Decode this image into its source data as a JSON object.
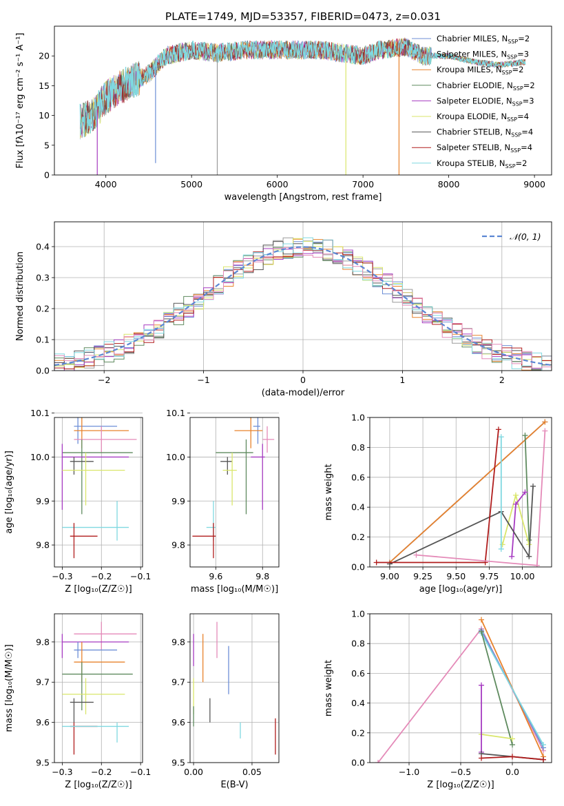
{
  "figure": {
    "title": "PLATE=1749, MJD=53357, FIBERID=0473, z=0.031"
  },
  "colors": [
    "#6c8ed6",
    "#9a9a9a",
    "#e8822b",
    "#5e8a5e",
    "#a63ac1",
    "#d9e66a",
    "#555555",
    "#b01c1c",
    "#7fd8e0",
    "#e48ab8"
  ],
  "chart_data": [
    {
      "id": "spectrum",
      "type": "line",
      "title": "PLATE=1749, MJD=53357, FIBERID=0473, z=0.031",
      "xlabel": "wavelength [Angstrom, rest frame]",
      "ylabel": "Flux [fλ10⁻¹⁷ erg cm⁻² s⁻¹ A⁻¹]",
      "xlim": [
        3400,
        9200
      ],
      "ylim": [
        0,
        25
      ],
      "xticks": [
        "4000",
        "5000",
        "6000",
        "7000",
        "8000",
        "9000"
      ],
      "yticks": [
        "0",
        "5",
        "10",
        "15",
        "20"
      ],
      "grid": false,
      "legend": "top-right",
      "continuum": [
        [
          3700,
          9
        ],
        [
          3850,
          10
        ],
        [
          4000,
          13
        ],
        [
          4200,
          15
        ],
        [
          4500,
          17
        ],
        [
          4700,
          20
        ],
        [
          5000,
          21
        ],
        [
          5300,
          20.5
        ],
        [
          5600,
          21
        ],
        [
          6000,
          21
        ],
        [
          6500,
          21
        ],
        [
          7000,
          20
        ],
        [
          7200,
          21
        ],
        [
          7500,
          21.5
        ],
        [
          7700,
          20
        ],
        [
          8000,
          20
        ],
        [
          8300,
          19
        ],
        [
          8600,
          18.5
        ],
        [
          8900,
          19
        ]
      ],
      "spectrum_range": [
        3700,
        8900
      ],
      "drops": [
        [
          4580,
          2
        ],
        [
          5300,
          0
        ],
        [
          6800,
          0
        ],
        [
          7420,
          0
        ],
        [
          3900,
          0
        ]
      ],
      "series": [
        {
          "name": "Chabrier MILES, N",
          "sub": "SSP",
          "suffix": "=2"
        },
        {
          "name": "Salpeter MILES, N",
          "sub": "SSP",
          "suffix": "=3"
        },
        {
          "name": "Kroupa MILES, N",
          "sub": "SSP",
          "suffix": "=2"
        },
        {
          "name": "Chabrier ELODIE, N",
          "sub": "SSP",
          "suffix": "=2"
        },
        {
          "name": "Salpeter ELODIE, N",
          "sub": "SSP",
          "suffix": "=3"
        },
        {
          "name": "Kroupa ELODIE, N",
          "sub": "SSP",
          "suffix": "=4"
        },
        {
          "name": "Chabrier STELIB, N",
          "sub": "SSP",
          "suffix": "=4"
        },
        {
          "name": "Salpeter STELIB, N",
          "sub": "SSP",
          "suffix": "=4"
        },
        {
          "name": "Kroupa STELIB, N",
          "sub": "SSP",
          "suffix": "=2"
        }
      ]
    },
    {
      "id": "residuals",
      "type": "line",
      "xlabel": "(data-model)/error",
      "ylabel": "Normed distribution",
      "xlim": [
        -2.5,
        2.5
      ],
      "ylim": [
        0,
        0.48
      ],
      "xticks": [
        "−2",
        "−1",
        "0",
        "1",
        "2"
      ],
      "yticks": [
        "0.0",
        "0.1",
        "0.2",
        "0.3",
        "0.4"
      ],
      "grid": true,
      "legend": "top-right",
      "reference": {
        "name": "𝒩(0, 1)"
      },
      "bin_width": 0.1
    },
    {
      "id": "age-vs-Z",
      "type": "scatter",
      "xlabel": "Z [log₁₀(Z/Z☉)]",
      "ylabel": "age  [log₁₀(age/yr)]",
      "xlim": [
        -0.32,
        -0.095
      ],
      "ylim": [
        9.75,
        10.09
      ],
      "xticks": [
        "−0.3",
        "−0.2",
        "−0.1"
      ],
      "yticks": [
        "9.8",
        "9.9",
        "10.0",
        "10.1"
      ],
      "grid": true,
      "points": [
        {
          "c": 0,
          "x": -0.26,
          "y": 10.07,
          "xe": [
            -0.27,
            -0.16
          ],
          "ye": [
            10.03,
            10.09
          ]
        },
        {
          "c": 2,
          "x": -0.25,
          "y": 10.06,
          "xe": [
            -0.27,
            -0.13
          ],
          "ye": [
            10.02,
            10.09
          ]
        },
        {
          "c": 9,
          "x": -0.2,
          "y": 10.04,
          "xe": [
            -0.27,
            -0.11
          ],
          "ye": [
            10.01,
            10.07
          ]
        },
        {
          "c": 3,
          "x": -0.25,
          "y": 10.01,
          "xe": [
            -0.3,
            -0.12
          ],
          "ye": [
            9.87,
            10.04
          ]
        },
        {
          "c": 4,
          "x": -0.3,
          "y": 10.0,
          "xe": [
            -0.3,
            -0.13
          ],
          "ye": [
            9.88,
            10.03
          ]
        },
        {
          "c": 6,
          "x": -0.27,
          "y": 9.99,
          "xe": [
            -0.28,
            -0.22
          ],
          "ye": [
            9.96,
            10.0
          ]
        },
        {
          "c": 5,
          "x": -0.24,
          "y": 9.97,
          "xe": [
            -0.3,
            -0.14
          ],
          "ye": [
            9.89,
            10.01
          ]
        },
        {
          "c": 8,
          "x": -0.16,
          "y": 9.84,
          "xe": [
            -0.3,
            -0.13
          ],
          "ye": [
            9.81,
            9.9
          ]
        },
        {
          "c": 7,
          "x": -0.27,
          "y": 9.82,
          "xe": [
            -0.28,
            -0.21
          ],
          "ye": [
            9.77,
            9.85
          ]
        }
      ]
    },
    {
      "id": "age-vs-mass",
      "type": "scatter",
      "xlabel": "mass [log₁₀(M/M☉)]",
      "ylabel": "",
      "xlim": [
        9.49,
        9.87
      ],
      "ylim": [
        9.75,
        10.09
      ],
      "xticks": [
        "9.6",
        "9.8"
      ],
      "yticks": [
        "9.8",
        "9.9",
        "10.0",
        "10.1"
      ],
      "grid": true,
      "points": [
        {
          "c": 0,
          "x": 9.78,
          "y": 10.07,
          "xe": [
            9.76,
            9.79
          ],
          "ye": [
            10.03,
            10.09
          ]
        },
        {
          "c": 2,
          "x": 9.75,
          "y": 10.06,
          "xe": [
            9.68,
            9.8
          ],
          "ye": [
            10.02,
            10.09
          ]
        },
        {
          "c": 9,
          "x": 9.82,
          "y": 10.04,
          "xe": [
            9.8,
            9.85
          ],
          "ye": [
            10.01,
            10.07
          ]
        },
        {
          "c": 3,
          "x": 9.73,
          "y": 10.01,
          "xe": [
            9.6,
            9.76
          ],
          "ye": [
            9.87,
            10.04
          ]
        },
        {
          "c": 4,
          "x": 9.8,
          "y": 10.0,
          "xe": [
            9.75,
            9.81
          ],
          "ye": [
            9.88,
            10.03
          ]
        },
        {
          "c": 6,
          "x": 9.65,
          "y": 9.99,
          "xe": [
            9.62,
            9.67
          ],
          "ye": [
            9.96,
            10.0
          ]
        },
        {
          "c": 5,
          "x": 9.67,
          "y": 9.97,
          "xe": [
            9.63,
            9.69
          ],
          "ye": [
            9.89,
            10.01
          ]
        },
        {
          "c": 8,
          "x": 9.59,
          "y": 9.84,
          "xe": [
            9.56,
            9.6
          ],
          "ye": [
            9.81,
            9.9
          ]
        },
        {
          "c": 7,
          "x": 9.59,
          "y": 9.82,
          "xe": [
            9.5,
            9.6
          ],
          "ye": [
            9.77,
            9.85
          ]
        }
      ]
    },
    {
      "id": "weight-vs-age",
      "type": "line",
      "xlabel": "age  [log₁₀(age/yr)]",
      "ylabel": "mass weight",
      "xlim": [
        8.85,
        10.22
      ],
      "ylim": [
        0,
        1.0
      ],
      "xticks": [
        "9.00",
        "9.25",
        "9.50",
        "9.75",
        "10.00"
      ],
      "yticks": [
        "0.0",
        "0.2",
        "0.4",
        "0.6",
        "0.8",
        "1.0"
      ],
      "grid": true,
      "series": [
        {
          "c": 0,
          "pts": [
            [
              9.0,
              0.03
            ],
            [
              10.17,
              0.97
            ]
          ]
        },
        {
          "c": 2,
          "pts": [
            [
              9.0,
              0.03
            ],
            [
              10.17,
              0.97
            ]
          ]
        },
        {
          "c": 3,
          "pts": [
            [
              10.02,
              0.88
            ],
            [
              10.05,
              0.18
            ]
          ]
        },
        {
          "c": 5,
          "pts": [
            [
              9.85,
              0.15
            ],
            [
              9.95,
              0.48
            ],
            [
              10.05,
              0.15
            ]
          ]
        },
        {
          "c": 4,
          "pts": [
            [
              9.92,
              0.07
            ],
            [
              9.95,
              0.42
            ],
            [
              10.02,
              0.5
            ]
          ]
        },
        {
          "c": 6,
          "pts": [
            [
              9.0,
              0.02
            ],
            [
              9.84,
              0.37
            ],
            [
              10.05,
              0.07
            ],
            [
              10.08,
              0.54
            ]
          ]
        },
        {
          "c": 8,
          "pts": [
            [
              9.84,
              0.87
            ],
            [
              9.84,
              0.12
            ]
          ]
        },
        {
          "c": 7,
          "pts": [
            [
              8.9,
              0.03
            ],
            [
              9.72,
              0.03
            ],
            [
              9.82,
              0.92
            ]
          ]
        },
        {
          "c": 9,
          "pts": [
            [
              9.2,
              0.08
            ],
            [
              10.11,
              0.01
            ],
            [
              10.17,
              0.91
            ]
          ]
        }
      ]
    },
    {
      "id": "mass-vs-Z",
      "type": "scatter",
      "xlabel": "Z [log₁₀(Z/Z☉)]",
      "ylabel": "mass [log₁₀(M/M☉)]",
      "xlim": [
        -0.32,
        -0.095
      ],
      "ylim": [
        9.5,
        9.87
      ],
      "xticks": [
        "−0.3",
        "−0.2",
        "−0.1"
      ],
      "yticks": [
        "9.5",
        "9.6",
        "9.7",
        "9.8"
      ],
      "grid": true,
      "points": [
        {
          "c": 9,
          "x": -0.2,
          "y": 9.82,
          "xe": [
            -0.27,
            -0.11
          ],
          "ye": [
            9.78,
            9.85
          ]
        },
        {
          "c": 4,
          "x": -0.3,
          "y": 9.8,
          "xe": [
            -0.3,
            -0.13
          ],
          "ye": [
            9.76,
            9.82
          ]
        },
        {
          "c": 0,
          "x": -0.26,
          "y": 9.78,
          "xe": [
            -0.27,
            -0.16
          ],
          "ye": [
            9.76,
            9.8
          ]
        },
        {
          "c": 2,
          "x": -0.25,
          "y": 9.75,
          "xe": [
            -0.27,
            -0.14
          ],
          "ye": [
            9.7,
            9.8
          ]
        },
        {
          "c": 3,
          "x": -0.25,
          "y": 9.72,
          "xe": [
            -0.3,
            -0.12
          ],
          "ye": [
            9.63,
            9.75
          ]
        },
        {
          "c": 5,
          "x": -0.24,
          "y": 9.67,
          "xe": [
            -0.3,
            -0.14
          ],
          "ye": [
            9.62,
            9.71
          ]
        },
        {
          "c": 6,
          "x": -0.27,
          "y": 9.65,
          "xe": [
            -0.28,
            -0.22
          ],
          "ye": [
            9.6,
            9.66
          ]
        },
        {
          "c": 7,
          "x": -0.27,
          "y": 9.59,
          "xe": [
            -0.28,
            -0.21
          ],
          "ye": [
            9.52,
            9.6
          ]
        },
        {
          "c": 8,
          "x": -0.16,
          "y": 9.59,
          "xe": [
            -0.3,
            -0.13
          ],
          "ye": [
            9.55,
            9.6
          ]
        }
      ]
    },
    {
      "id": "mass-vs-EBV",
      "type": "scatter",
      "xlabel": "E(B-V)",
      "ylabel": "",
      "xlim": [
        -0.003,
        0.073
      ],
      "ylim": [
        9.5,
        9.87
      ],
      "xticks": [
        "0.00",
        "0.05"
      ],
      "yticks": [
        "9.5",
        "9.6",
        "9.7",
        "9.8"
      ],
      "grid": true,
      "segments": [
        {
          "c": 4,
          "x": 0.0,
          "ye": [
            9.74,
            9.82
          ]
        },
        {
          "c": 5,
          "x": 0.0,
          "ye": [
            9.62,
            9.71
          ]
        },
        {
          "c": 3,
          "x": 0.0,
          "ye": [
            9.59,
            9.64
          ]
        },
        {
          "c": 2,
          "x": 0.008,
          "ye": [
            9.7,
            9.82
          ]
        },
        {
          "c": 6,
          "x": 0.014,
          "ye": [
            9.6,
            9.66
          ]
        },
        {
          "c": 9,
          "x": 0.02,
          "ye": [
            9.76,
            9.85
          ]
        },
        {
          "c": 0,
          "x": 0.03,
          "ye": [
            9.67,
            9.79
          ]
        },
        {
          "c": 8,
          "x": 0.04,
          "ye": [
            9.56,
            9.6
          ]
        },
        {
          "c": 7,
          "x": 0.07,
          "ye": [
            9.52,
            9.61
          ]
        }
      ]
    },
    {
      "id": "weight-vs-Z",
      "type": "line",
      "xlabel": "Z [log₁₀(Z/Z☉)]",
      "ylabel": "mass weight",
      "xlim": [
        -1.38,
        0.38
      ],
      "ylim": [
        0,
        1.0
      ],
      "xticks": [
        "−1.0",
        "−0.5",
        "0.0"
      ],
      "yticks": [
        "0.0",
        "0.2",
        "0.4",
        "0.6",
        "0.8",
        "1.0"
      ],
      "grid": true,
      "series": [
        {
          "c": 9,
          "pts": [
            [
              -1.3,
              0.0
            ],
            [
              -0.3,
              0.9
            ],
            [
              0.3,
              0.08
            ]
          ]
        },
        {
          "c": 2,
          "pts": [
            [
              -0.3,
              0.96
            ],
            [
              0.3,
              0.04
            ]
          ]
        },
        {
          "c": 0,
          "pts": [
            [
              -0.3,
              0.89
            ],
            [
              0.3,
              0.1
            ]
          ]
        },
        {
          "c": 8,
          "pts": [
            [
              -0.3,
              0.87
            ],
            [
              0.3,
              0.12
            ]
          ]
        },
        {
          "c": 3,
          "pts": [
            [
              -0.3,
              0.88
            ],
            [
              0.0,
              0.12
            ]
          ]
        },
        {
          "c": 5,
          "pts": [
            [
              -0.3,
              0.19
            ],
            [
              0.0,
              0.16
            ]
          ]
        },
        {
          "c": 4,
          "pts": [
            [
              -0.3,
              0.52
            ],
            [
              -0.3,
              0.07
            ]
          ]
        },
        {
          "c": 6,
          "pts": [
            [
              -0.3,
              0.06
            ],
            [
              0.3,
              0.02
            ]
          ]
        },
        {
          "c": 7,
          "pts": [
            [
              -0.3,
              0.03
            ],
            [
              0.0,
              0.04
            ],
            [
              0.3,
              0.02
            ]
          ]
        }
      ]
    }
  ]
}
